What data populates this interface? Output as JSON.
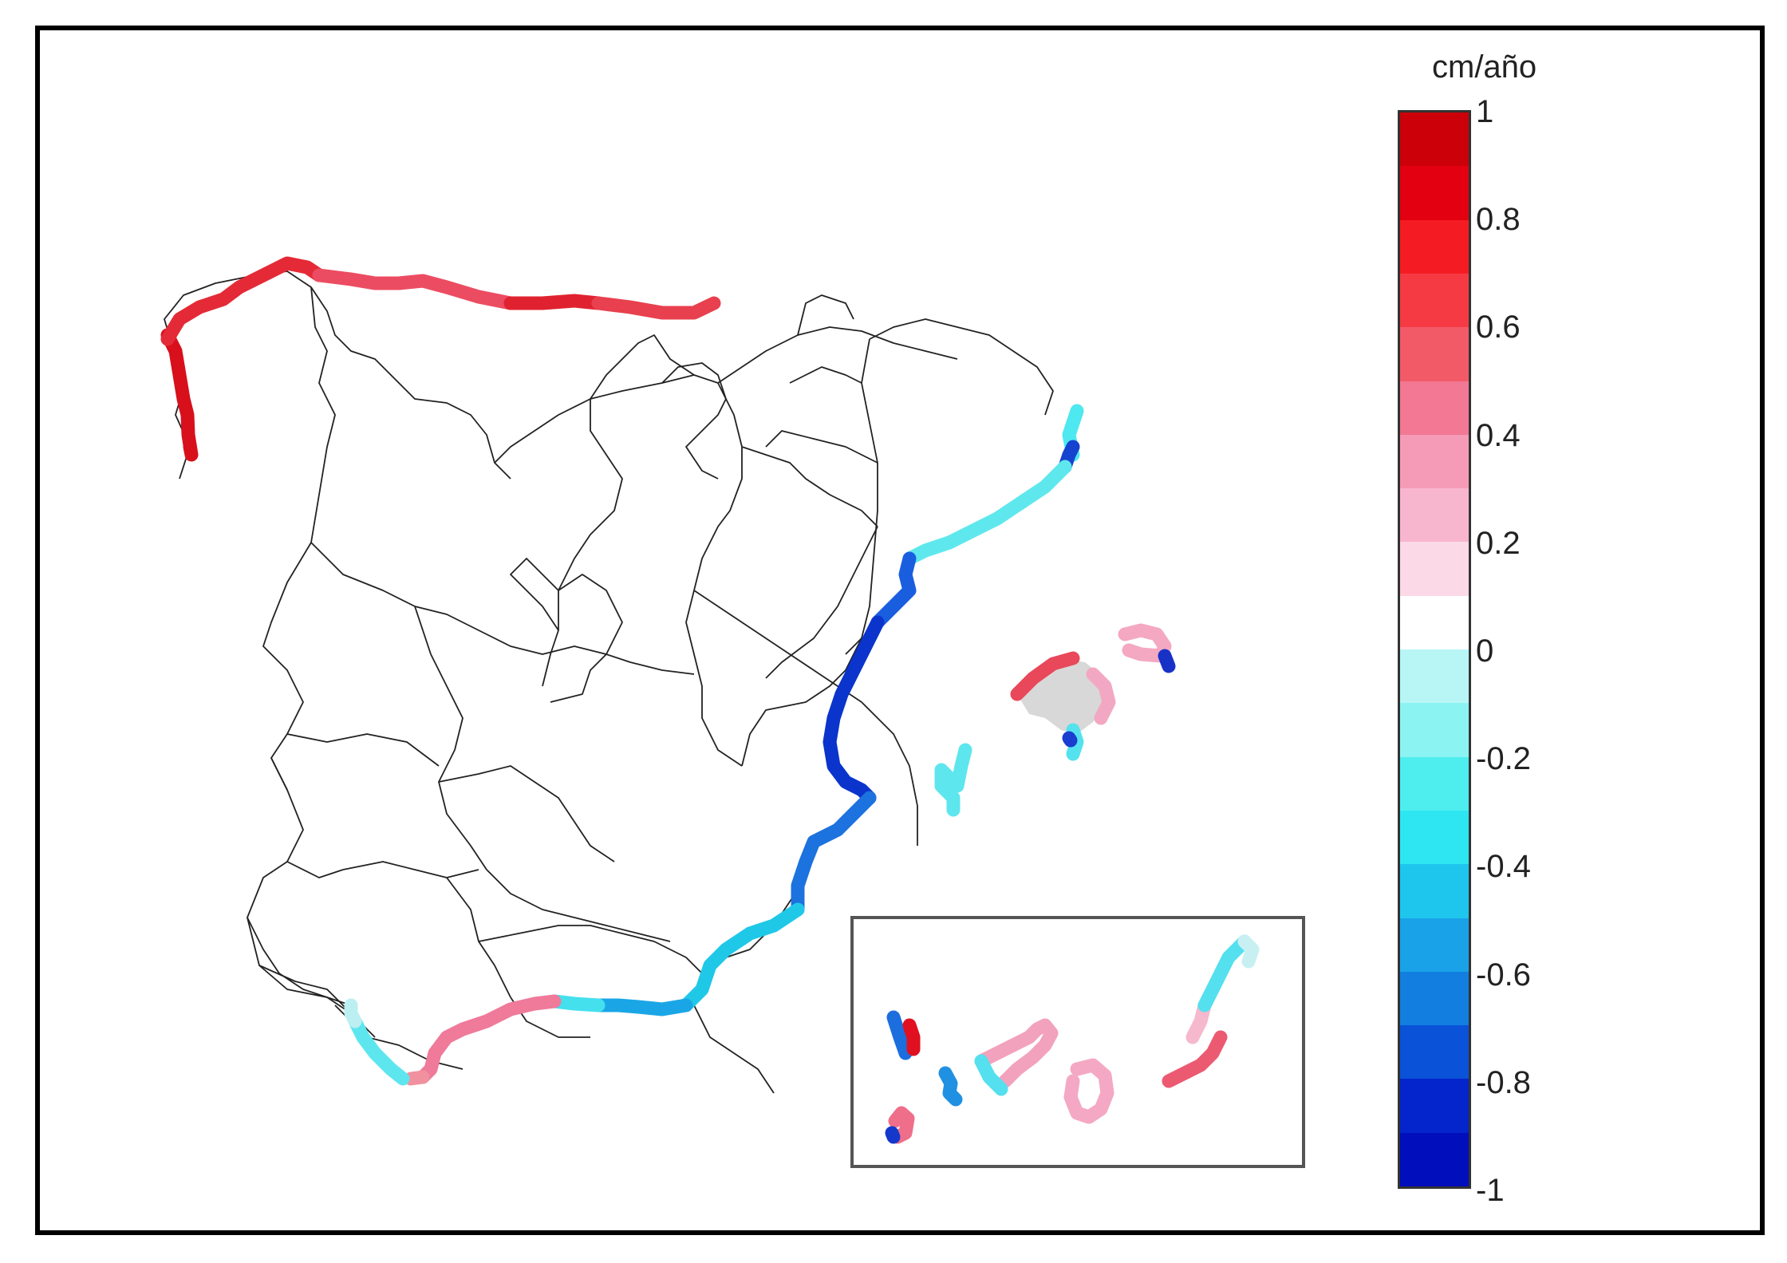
{
  "legend": {
    "title": "cm/año",
    "ticks": [
      "1",
      "0.8",
      "0.6",
      "0.4",
      "0.2",
      "0",
      "-0.2",
      "-0.4",
      "-0.6",
      "-0.8",
      "-1"
    ],
    "range": [
      -1,
      1
    ],
    "colors": [
      "#cc0008",
      "#e30010",
      "#f41c22",
      "#f63a44",
      "#f35a68",
      "#f27893",
      "#f59bb8",
      "#f8b6ce",
      "#fbd9e6",
      "#ffffff",
      "#b8f6f6",
      "#8cf3f3",
      "#4eeeee",
      "#2ee6f2",
      "#1ec6ee",
      "#1aa2e8",
      "#127ee0",
      "#0a52d8",
      "#0424cc",
      "#000ebc"
    ]
  },
  "map": {
    "coast_colors": {
      "north": "#e8202c",
      "north_pink": "#f04c62",
      "galicia": "#d8101c",
      "catalonia_cyan": "#3ee6ee",
      "east_blue": "#0a3ad4",
      "east_mid": "#1a6ee0",
      "southeast_cyan": "#20cfe8",
      "south_pink": "#f07898",
      "southwest_cyan": "#5ee8ee"
    }
  }
}
